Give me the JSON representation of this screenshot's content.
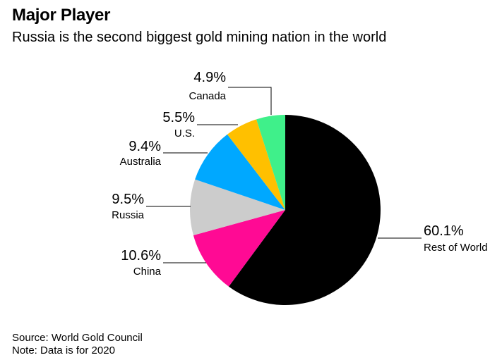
{
  "title": "Major Player",
  "subtitle": "Russia is the second biggest gold mining nation in the world",
  "chart_data": {
    "type": "pie",
    "title": "Major Player",
    "subtitle": "Russia is the second biggest gold mining nation in the world",
    "slices": [
      {
        "label": "Rest of World",
        "value": 60.1,
        "display": "60.1%",
        "color": "#000000"
      },
      {
        "label": "China",
        "value": 10.6,
        "display": "10.6%",
        "color": "#ff0a94"
      },
      {
        "label": "Russia",
        "value": 9.5,
        "display": "9.5%",
        "color": "#cccccc"
      },
      {
        "label": "Australia",
        "value": 9.4,
        "display": "9.4%",
        "color": "#00a8ff"
      },
      {
        "label": "U.S.",
        "value": 5.5,
        "display": "5.5%",
        "color": "#ffc000"
      },
      {
        "label": "Canada",
        "value": 4.9,
        "display": "4.9%",
        "color": "#3ff08a"
      }
    ]
  },
  "footer": {
    "source": "Source: World Gold Council",
    "note": "Note: Data is for 2020"
  }
}
